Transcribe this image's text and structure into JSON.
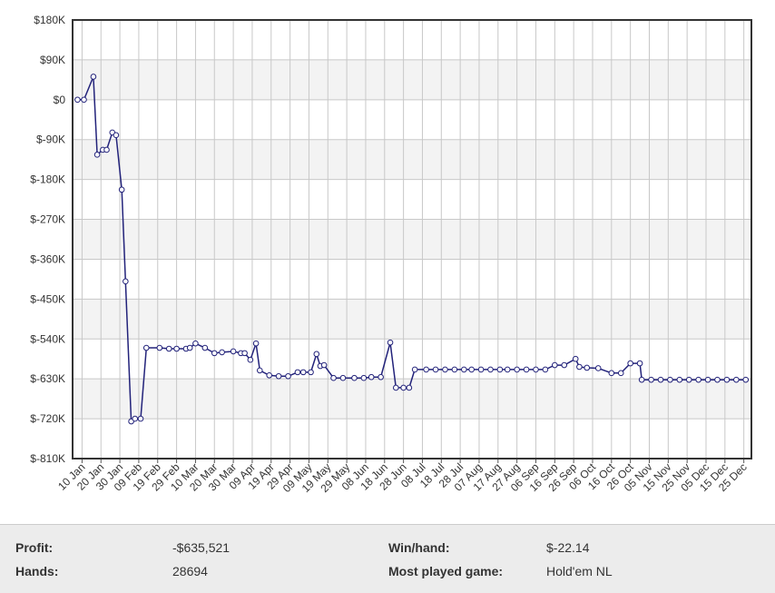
{
  "chart_data": {
    "type": "line",
    "color": "#22227a",
    "grid": true,
    "xlim": [
      5,
      364
    ],
    "ylim": [
      -810000,
      180000
    ],
    "yticks": [
      {
        "value": 180000,
        "label": "$180K"
      },
      {
        "value": 90000,
        "label": "$90K"
      },
      {
        "value": 0,
        "label": "$0"
      },
      {
        "value": -90000,
        "label": "$-90K"
      },
      {
        "value": -180000,
        "label": "$-180K"
      },
      {
        "value": -270000,
        "label": "$-270K"
      },
      {
        "value": -360000,
        "label": "$-360K"
      },
      {
        "value": -450000,
        "label": "$-450K"
      },
      {
        "value": -540000,
        "label": "$-540K"
      },
      {
        "value": -630000,
        "label": "$-630K"
      },
      {
        "value": -720000,
        "label": "$-720K"
      },
      {
        "value": -810000,
        "label": "$-810K"
      }
    ],
    "xticks": [
      {
        "value": 10,
        "label": "10 Jan"
      },
      {
        "value": 20,
        "label": "20 Jan"
      },
      {
        "value": 30,
        "label": "30 Jan"
      },
      {
        "value": 40,
        "label": "09 Feb"
      },
      {
        "value": 50,
        "label": "19 Feb"
      },
      {
        "value": 60,
        "label": "29 Feb"
      },
      {
        "value": 70,
        "label": "10 Mar"
      },
      {
        "value": 80,
        "label": "20 Mar"
      },
      {
        "value": 90,
        "label": "30 Mar"
      },
      {
        "value": 100,
        "label": "09 Apr"
      },
      {
        "value": 110,
        "label": "19 Apr"
      },
      {
        "value": 120,
        "label": "29 Apr"
      },
      {
        "value": 130,
        "label": "09 May"
      },
      {
        "value": 140,
        "label": "19 May"
      },
      {
        "value": 150,
        "label": "29 May"
      },
      {
        "value": 160,
        "label": "08 Jun"
      },
      {
        "value": 170,
        "label": "18 Jun"
      },
      {
        "value": 180,
        "label": "28 Jun"
      },
      {
        "value": 190,
        "label": "08 Jul"
      },
      {
        "value": 200,
        "label": "18 Jul"
      },
      {
        "value": 210,
        "label": "28 Jul"
      },
      {
        "value": 220,
        "label": "07 Aug"
      },
      {
        "value": 230,
        "label": "17 Aug"
      },
      {
        "value": 240,
        "label": "27 Aug"
      },
      {
        "value": 250,
        "label": "06 Sep"
      },
      {
        "value": 260,
        "label": "16 Sep"
      },
      {
        "value": 270,
        "label": "26 Sep"
      },
      {
        "value": 280,
        "label": "06 Oct"
      },
      {
        "value": 290,
        "label": "16 Oct"
      },
      {
        "value": 300,
        "label": "26 Oct"
      },
      {
        "value": 310,
        "label": "05 Nov"
      },
      {
        "value": 320,
        "label": "15 Nov"
      },
      {
        "value": 330,
        "label": "25 Nov"
      },
      {
        "value": 340,
        "label": "05 Dec"
      },
      {
        "value": 350,
        "label": "15 Dec"
      },
      {
        "value": 360,
        "label": "25 Dec"
      }
    ],
    "x": [
      7.6,
      11,
      16,
      18,
      21,
      23,
      26,
      28,
      31,
      33,
      36,
      38,
      41,
      44,
      51,
      56,
      60,
      65,
      67,
      70,
      75,
      80,
      84,
      90,
      94,
      96,
      99,
      102,
      104,
      109,
      114,
      119,
      124,
      127,
      131,
      134,
      136,
      138,
      143,
      148,
      154,
      159,
      163,
      168,
      173,
      176,
      180,
      183,
      186,
      192,
      197,
      202,
      207,
      212,
      216,
      221,
      226,
      231,
      235,
      240,
      245,
      250,
      255,
      260,
      265,
      271,
      273,
      277,
      283,
      290,
      295,
      300,
      305,
      306,
      311,
      316,
      321,
      326,
      331,
      336,
      341,
      346,
      351,
      356,
      361
    ],
    "values": [
      0,
      0,
      52000,
      -124000,
      -113000,
      -113000,
      -74000,
      -80000,
      -203000,
      -410000,
      -726000,
      -720000,
      -720000,
      -560000,
      -560000,
      -562000,
      -562000,
      -562000,
      -560000,
      -550000,
      -560000,
      -572000,
      -570000,
      -568000,
      -572000,
      -572000,
      -587000,
      -550000,
      -611000,
      -622000,
      -624000,
      -624000,
      -615000,
      -615000,
      -615000,
      -574000,
      -601000,
      -599000,
      -628000,
      -628000,
      -628000,
      -628000,
      -626000,
      -626000,
      -548000,
      -650000,
      -650000,
      -650000,
      -609000,
      -609000,
      -609000,
      -609000,
      -609000,
      -609000,
      -609000,
      -609000,
      -609000,
      -609000,
      -609000,
      -609000,
      -609000,
      -609000,
      -609000,
      -599000,
      -599000,
      -585000,
      -603000,
      -605000,
      -606000,
      -617000,
      -617000,
      -595000,
      -595000,
      -632000,
      -632000,
      -632000,
      -632000,
      -632000,
      -632000,
      -632000,
      -632000,
      -632000,
      -632000,
      -632000,
      -632000
    ]
  },
  "stats": {
    "profit_label": "Profit:",
    "profit": "-$635,521",
    "winhand_label": "Win/hand:",
    "winhand": "$-22.14",
    "hands_label": "Hands:",
    "hands": "28694",
    "game_label": "Most played game:",
    "game": "Hold'em NL"
  }
}
